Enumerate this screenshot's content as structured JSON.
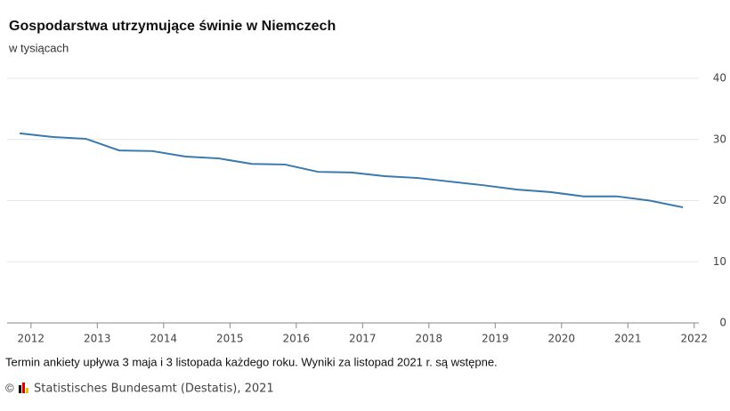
{
  "chart_data": {
    "type": "line",
    "title": "Gospodarstwa utrzymujące świnie w Niemczech",
    "subtitle": "w tysiącach",
    "x": [
      2011.83,
      2012.33,
      2012.83,
      2013.33,
      2013.83,
      2014.33,
      2014.83,
      2015.33,
      2015.83,
      2016.33,
      2016.83,
      2017.33,
      2017.83,
      2018.33,
      2018.83,
      2019.33,
      2019.83,
      2020.33,
      2020.83,
      2021.33,
      2021.83
    ],
    "series": [
      {
        "color": "#3a78ad",
        "values": [
          31.0,
          30.4,
          30.1,
          28.2,
          28.1,
          27.2,
          26.9,
          26.0,
          25.9,
          24.7,
          24.6,
          24.0,
          23.7,
          23.1,
          22.5,
          21.8,
          21.4,
          20.7,
          20.7,
          20.0,
          18.9
        ]
      }
    ],
    "xlim": [
      2011.64,
      2022.07
    ],
    "xticks": [
      2012,
      2013,
      2014,
      2015,
      2016,
      2017,
      2018,
      2019,
      2020,
      2021,
      2022
    ],
    "ylim": [
      0,
      40
    ],
    "yticks": [
      0,
      10,
      20,
      30,
      40
    ],
    "grid": true,
    "note": "Termin ankiety upływa 3 maja i 3 listopada każdego roku. Wyniki za listopad 2021 r. są wstępne.",
    "copyright": "©",
    "source": "Statistisches Bundesamt (Destatis), 2021"
  }
}
